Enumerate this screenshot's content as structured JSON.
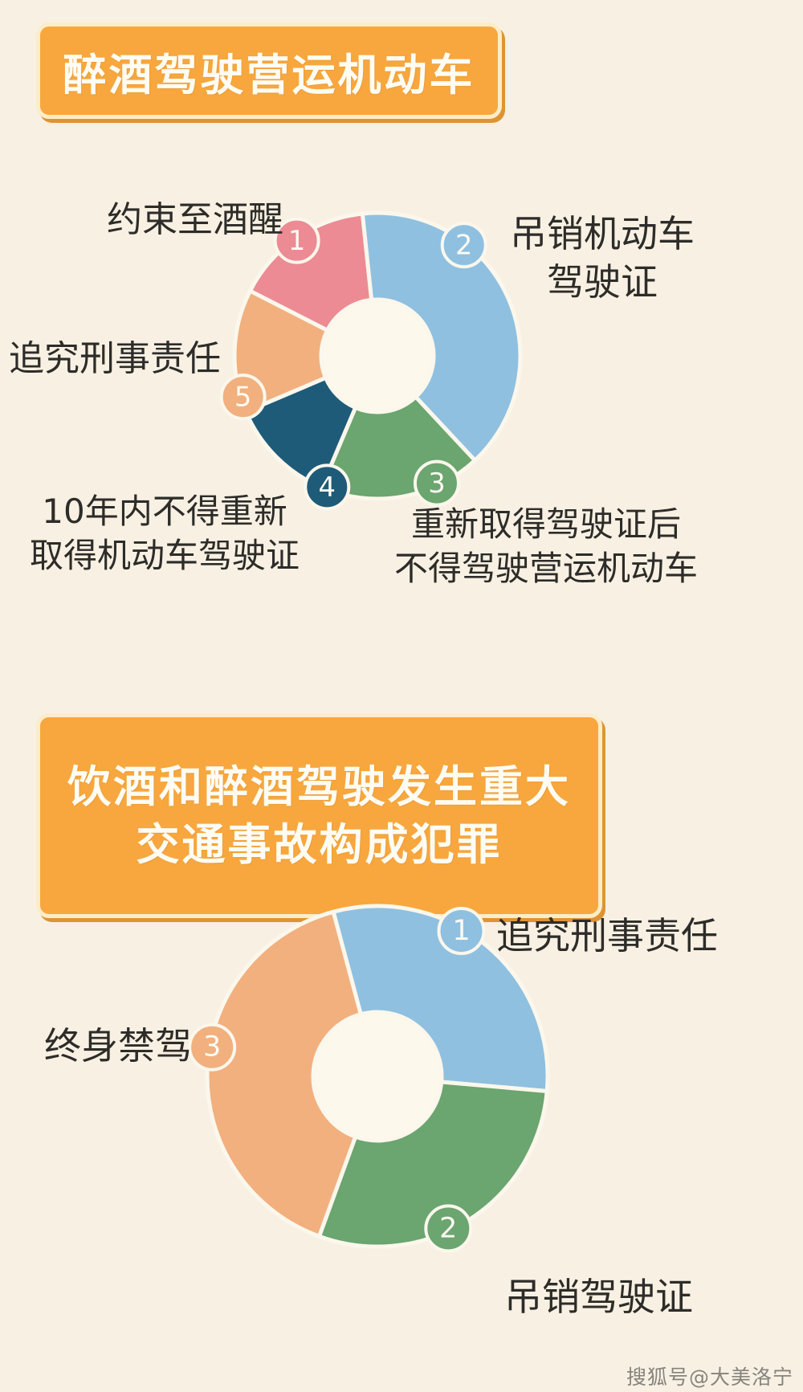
{
  "page": {
    "background_color": "#F8F1E3",
    "accent_orange": "#F7A73E",
    "badge_border_color": "#FBEDC9",
    "badge_shadow_color": "#DE9434",
    "text_color": "#2D2C29",
    "watermark": "搜狐号@大美洛宁"
  },
  "section1": {
    "title": "醉酒驾驶营运机动车",
    "labels": {
      "l1": "约束至酒醒",
      "l2a": "吊销机动车",
      "l2b": "驾驶证",
      "l3a": "重新取得驾驶证后",
      "l3b": "不得驾驶营运机动车",
      "l4a": "10年内不得重新",
      "l4b": "取得机动车驾驶证",
      "l5": "追究刑事责任"
    }
  },
  "section2": {
    "title_line1": "饮酒和醉酒驾驶发生重大",
    "title_line2": "交通事故构成犯罪",
    "labels": {
      "l1": "追究刑事责任",
      "l2": "吊销驾驶证",
      "l3": "终身禁驾"
    }
  },
  "chart_data": [
    {
      "type": "pie",
      "donut": true,
      "title": "醉酒驾驶营运机动车",
      "legend_position": "around-slices",
      "separator_color": "#FBF7EC",
      "hole_color": "#FCF8EC",
      "slices": [
        {
          "num": "1",
          "label": "约束至酒醒",
          "color": "#EC8B93",
          "start_deg": 297,
          "end_deg": 354,
          "badge_angle_deg": 325
        },
        {
          "num": "2",
          "label": "吊销机动车驾驶证",
          "color": "#8FC0E0",
          "start_deg": -6,
          "end_deg": 137,
          "badge_angle_deg": 38
        },
        {
          "num": "3",
          "label": "重新取得驾驶证后不得驾驶营运机动车",
          "color": "#6BA56F",
          "start_deg": 137,
          "end_deg": 203,
          "badge_angle_deg": 155
        },
        {
          "num": "4",
          "label": "10年内不得重新取得机动车驾驶证",
          "color": "#1E5B78",
          "start_deg": 203,
          "end_deg": 247,
          "badge_angle_deg": 201
        },
        {
          "num": "5",
          "label": "追究刑事责任",
          "color": "#F1B07E",
          "start_deg": 247,
          "end_deg": 297,
          "badge_angle_deg": 253
        }
      ]
    },
    {
      "type": "pie",
      "donut": true,
      "title": "饮酒和醉酒驾驶发生重大交通事故构成犯罪",
      "legend_position": "around-slices",
      "separator_color": "#FBF7EC",
      "hole_color": "#FCF8EC",
      "slices": [
        {
          "num": "1",
          "label": "追究刑事责任",
          "color": "#8FC0E0",
          "start_deg": -15,
          "end_deg": 95,
          "badge_angle_deg": 30
        },
        {
          "num": "2",
          "label": "吊销驾驶证",
          "color": "#6BA56F",
          "start_deg": 95,
          "end_deg": 200,
          "badge_angle_deg": 155
        },
        {
          "num": "3",
          "label": "终身禁驾",
          "color": "#F1B07E",
          "start_deg": 200,
          "end_deg": 345,
          "badge_angle_deg": 280
        }
      ]
    }
  ]
}
